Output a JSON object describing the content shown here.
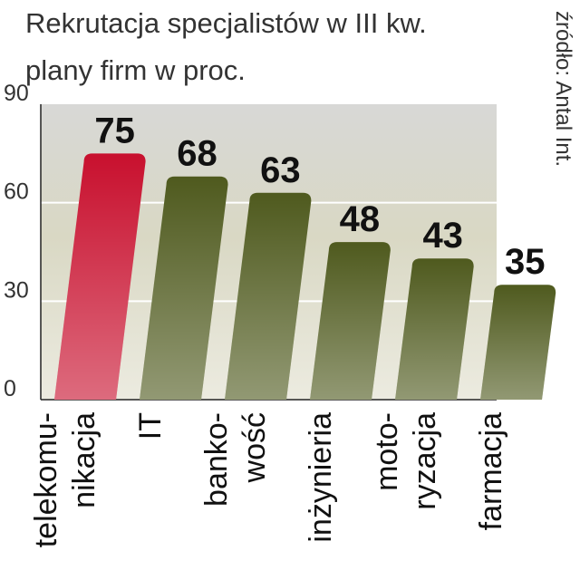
{
  "chart_data": {
    "type": "bar",
    "title": [
      "Rekrutacja specjalistów w III kw.",
      "plany firm w proc."
    ],
    "source": "źródło: Antal Int.",
    "categories": [
      [
        "telekomu-",
        "nikacja"
      ],
      [
        "IT"
      ],
      [
        "banko-",
        "wość"
      ],
      [
        "inżynieria"
      ],
      [
        "moto-",
        "ryzacja"
      ],
      [
        "farmacja"
      ]
    ],
    "values": [
      75,
      68,
      63,
      48,
      43,
      35
    ],
    "colors": [
      "#c8102e",
      "#4f5a1e",
      "#4f5a1e",
      "#4f5a1e",
      "#4f5a1e",
      "#4f5a1e"
    ],
    "ylim": [
      0,
      90
    ],
    "yticks": [
      0,
      30,
      60,
      90
    ],
    "grid": true
  }
}
